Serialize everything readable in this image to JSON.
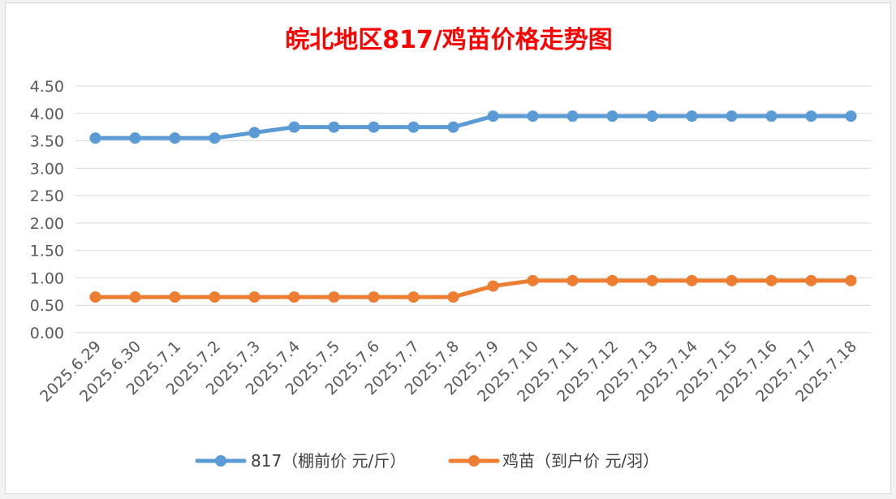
{
  "chart_data": {
    "type": "line",
    "title": "皖北地区817/鸡苗价格走势图",
    "xlabel": "",
    "ylabel": "",
    "categories": [
      "2025.6.29",
      "2025.6.30",
      "2025.7.1",
      "2025.7.2",
      "2025.7.3",
      "2025.7.4",
      "2025.7.5",
      "2025.7.6",
      "2025.7.7",
      "2025.7.8",
      "2025.7.9",
      "2025.7.10",
      "2025.7.11",
      "2025.7.12",
      "2025.7.13",
      "2025.7.14",
      "2025.7.15",
      "2025.7.16",
      "2025.7.17",
      "2025.7.18"
    ],
    "yticks": [
      "0.00",
      "0.50",
      "1.00",
      "1.50",
      "2.00",
      "2.50",
      "3.00",
      "3.50",
      "4.00",
      "4.50"
    ],
    "ylim": [
      0,
      4.5
    ],
    "grid": true,
    "legend_position": "bottom",
    "series": [
      {
        "name": "817（棚前价 元/斤）",
        "color": "#5b9bd5",
        "values": [
          3.55,
          3.55,
          3.55,
          3.55,
          3.65,
          3.75,
          3.75,
          3.75,
          3.75,
          3.75,
          3.95,
          3.95,
          3.95,
          3.95,
          3.95,
          3.95,
          3.95,
          3.95,
          3.95,
          3.95
        ]
      },
      {
        "name": "鸡苗（到户价 元/羽）",
        "color": "#ed7d31",
        "values": [
          0.65,
          0.65,
          0.65,
          0.65,
          0.65,
          0.65,
          0.65,
          0.65,
          0.65,
          0.65,
          0.85,
          0.95,
          0.95,
          0.95,
          0.95,
          0.95,
          0.95,
          0.95,
          0.95,
          0.95
        ]
      }
    ]
  }
}
